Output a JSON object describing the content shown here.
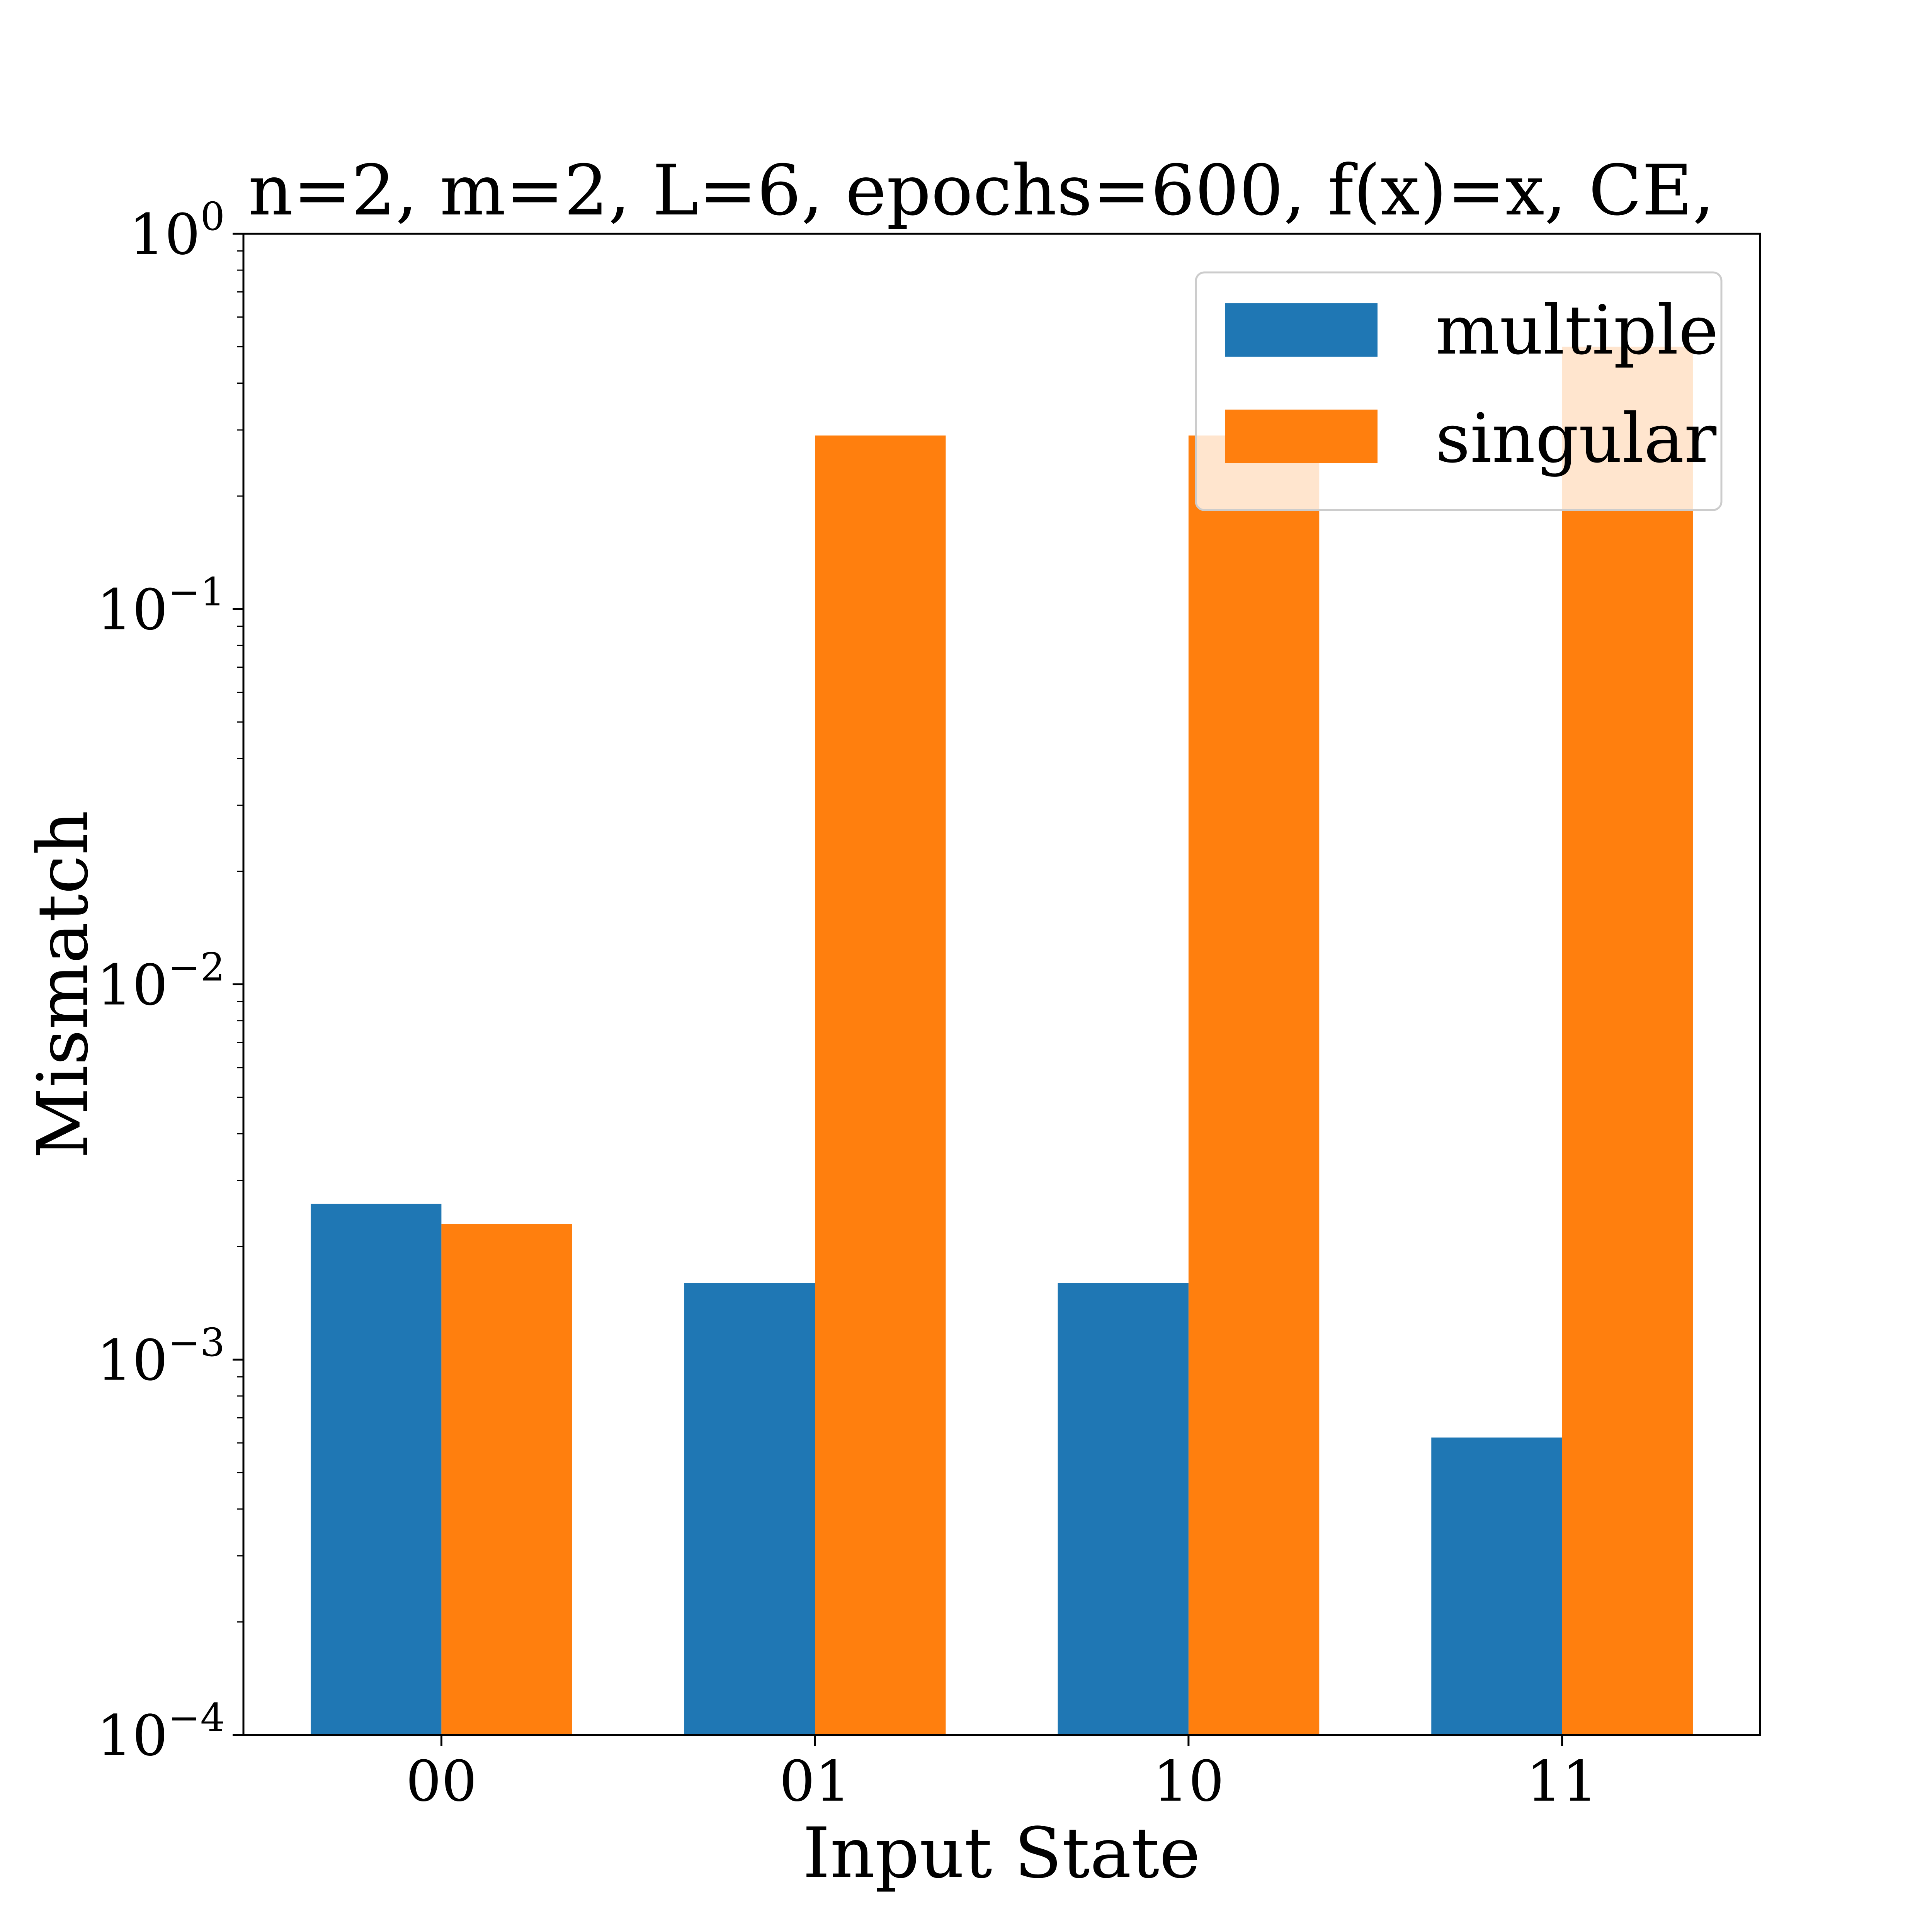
{
  "chart_data": {
    "type": "bar",
    "title": "n=2, m=2, L=6, epochs=600, f(x)=x, CE,",
    "xlabel": "Input State",
    "ylabel": "Mismatch",
    "categories": [
      "00",
      "01",
      "10",
      "11"
    ],
    "yscale": "log",
    "ylim": [
      0.0001,
      1
    ],
    "yticks": [
      {
        "base": "10",
        "exp": "−4",
        "value": 0.0001
      },
      {
        "base": "10",
        "exp": "−3",
        "value": 0.001
      },
      {
        "base": "10",
        "exp": "−2",
        "value": 0.01
      },
      {
        "base": "10",
        "exp": "−1",
        "value": 0.1
      },
      {
        "base": "10",
        "exp": "0",
        "value": 1
      }
    ],
    "series": [
      {
        "name": "multiple",
        "color": "#1f77b4",
        "values": [
          0.0026,
          0.0016,
          0.0016,
          0.00062
        ]
      },
      {
        "name": "singular",
        "color": "#ff7f0e",
        "values": [
          0.0023,
          0.29,
          0.29,
          0.5
        ]
      }
    ],
    "legend": "top-right",
    "grid": false
  }
}
